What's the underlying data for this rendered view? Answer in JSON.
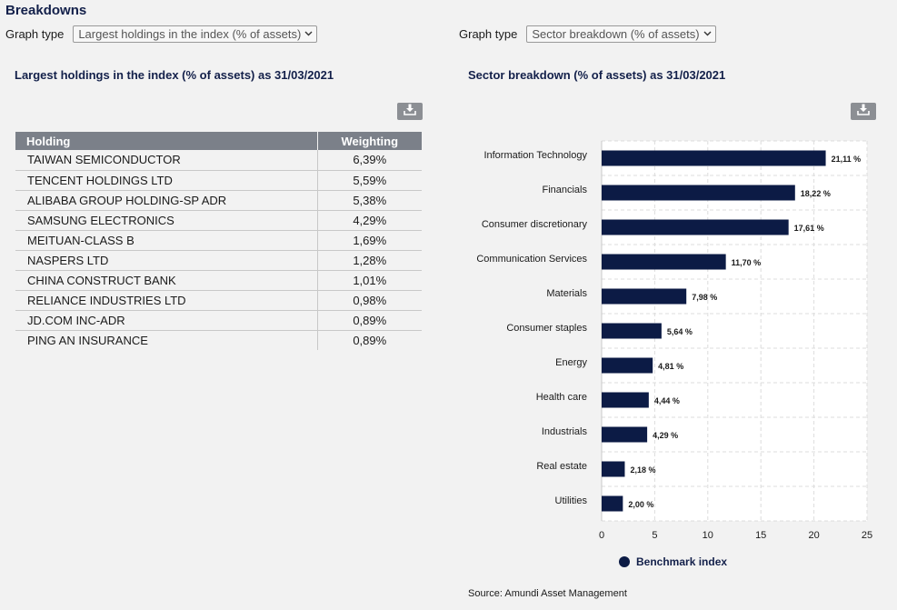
{
  "section_title": "Breakdowns",
  "left": {
    "graph_type_label": "Graph type",
    "graph_type_value": "Largest holdings in the index (% of assets)",
    "title": "Largest holdings in the index (% of assets) as 31/03/2021",
    "download_icon": "download-icon",
    "table": {
      "headers": [
        "Holding",
        "Weighting"
      ],
      "rows": [
        [
          "TAIWAN SEMICONDUCTOR",
          "6,39%"
        ],
        [
          "TENCENT HOLDINGS LTD",
          "5,59%"
        ],
        [
          "ALIBABA GROUP HOLDING-SP ADR",
          "5,38%"
        ],
        [
          "SAMSUNG ELECTRONICS",
          "4,29%"
        ],
        [
          "MEITUAN-CLASS B",
          "1,69%"
        ],
        [
          "NASPERS LTD",
          "1,28%"
        ],
        [
          "CHINA CONSTRUCT BANK",
          "1,01%"
        ],
        [
          "RELIANCE INDUSTRIES LTD",
          "0,98%"
        ],
        [
          "JD.COM INC-ADR",
          "0,89%"
        ],
        [
          "PING AN INSURANCE",
          "0,89%"
        ]
      ]
    }
  },
  "right": {
    "graph_type_label": "Graph type",
    "graph_type_value": "Sector breakdown (% of assets)",
    "title": "Sector breakdown (% of assets) as 31/03/2021",
    "download_icon": "download-icon",
    "legend_label": "Benchmark index",
    "source": "Source: Amundi Asset Management"
  },
  "colors": {
    "bar": "#0c1b45",
    "header_bg": "#7b8089",
    "title": "#13204a"
  },
  "chart_data": {
    "type": "bar",
    "orientation": "horizontal",
    "categories": [
      "Information Technology",
      "Financials",
      "Consumer discretionary",
      "Communication Services",
      "Materials",
      "Consumer staples",
      "Energy",
      "Health care",
      "Industrials",
      "Real estate",
      "Utilities"
    ],
    "series": [
      {
        "name": "Benchmark index",
        "values": [
          21.11,
          18.22,
          17.61,
          11.7,
          7.98,
          5.64,
          4.81,
          4.44,
          4.29,
          2.18,
          2.0
        ]
      }
    ],
    "data_labels": [
      "21,11 %",
      "18,22 %",
      "17,61 %",
      "11,70 %",
      "7,98 %",
      "5,64 %",
      "4,81 %",
      "4,44 %",
      "4,29 %",
      "2,18 %",
      "2,00 %"
    ],
    "xlim": [
      0,
      25
    ],
    "xticks": [
      "0",
      "5",
      "10",
      "15",
      "20",
      "25"
    ],
    "grid": true,
    "legend": "bottom"
  }
}
